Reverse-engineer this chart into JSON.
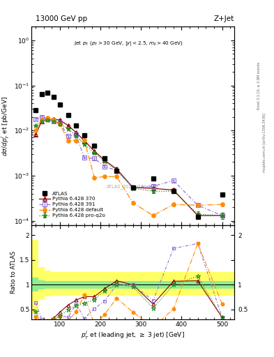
{
  "title_top": "13000 GeV pp",
  "title_right": "Z+Jet",
  "watermark": "ATLAS_2017_I1514251",
  "rivet_text": "Rivet 3.1.10, ≥ 2.8M events",
  "mcplots_text": "mcplots.cern.ch [arXiv:1306.3436]",
  "atlas_x": [
    40,
    55,
    70,
    85,
    100,
    120,
    140,
    160,
    185,
    210,
    240,
    280,
    330,
    380,
    440,
    500
  ],
  "atlas_y": [
    0.028,
    0.065,
    0.068,
    0.055,
    0.038,
    0.022,
    0.013,
    0.0079,
    0.0046,
    0.0024,
    0.0013,
    0.00055,
    0.00085,
    0.00045,
    0.00012,
    0.00038
  ],
  "py370_x": [
    40,
    55,
    70,
    85,
    100,
    120,
    140,
    160,
    185,
    210,
    240,
    280,
    330,
    380,
    440,
    500
  ],
  "py370_y": [
    0.008,
    0.016,
    0.018,
    0.018,
    0.017,
    0.013,
    0.009,
    0.006,
    0.0035,
    0.0022,
    0.0014,
    0.00055,
    0.00052,
    0.00048,
    0.00013,
    0.00013
  ],
  "py370_yerr": [
    0.0004,
    0.0008,
    0.0009,
    0.0009,
    0.0008,
    0.0006,
    0.0004,
    0.0003,
    0.0002,
    0.00015,
    0.0001,
    5e-05,
    5e-05,
    5e-05,
    2e-05,
    2e-05
  ],
  "py391_x": [
    40,
    55,
    70,
    85,
    100,
    120,
    140,
    160,
    185,
    210,
    240,
    280,
    330,
    380,
    440,
    500
  ],
  "py391_y": [
    0.018,
    0.02,
    0.018,
    0.016,
    0.015,
    0.0075,
    0.008,
    0.0025,
    0.0024,
    0.0016,
    0.0013,
    0.00055,
    0.00058,
    0.00078,
    0.00022,
    0.00013
  ],
  "py391_yerr": [
    0.0009,
    0.001,
    0.0009,
    0.0008,
    0.0007,
    0.0004,
    0.0004,
    0.0001,
    0.00015,
    0.0001,
    8e-05,
    4e-05,
    4e-05,
    7e-05,
    2e-05,
    2e-05
  ],
  "pydef_x": [
    40,
    55,
    70,
    85,
    100,
    120,
    140,
    160,
    185,
    210,
    240,
    280,
    330,
    380,
    440,
    500
  ],
  "pydef_y": [
    0.01,
    0.017,
    0.019,
    0.017,
    0.014,
    0.006,
    0.006,
    0.0062,
    0.0009,
    0.00095,
    0.00095,
    0.00025,
    0.00013,
    0.00023,
    0.00022,
    0.00023
  ],
  "pydef_yerr": [
    0.0005,
    0.0008,
    0.001,
    0.0008,
    0.0007,
    0.0003,
    0.0003,
    0.0003,
    5e-05,
    5e-05,
    5e-05,
    2e-05,
    1e-05,
    2e-05,
    2e-05,
    2e-05
  ],
  "pyq2o_x": [
    40,
    55,
    70,
    85,
    100,
    120,
    140,
    160,
    185,
    210,
    240,
    280,
    330,
    380,
    440,
    500
  ],
  "pyq2o_y": [
    0.013,
    0.016,
    0.017,
    0.016,
    0.014,
    0.011,
    0.0075,
    0.005,
    0.0032,
    0.0021,
    0.0013,
    0.00053,
    0.00045,
    0.00045,
    0.00014,
    0.00013
  ],
  "pyq2o_yerr": [
    0.0006,
    0.0008,
    0.0009,
    0.0008,
    0.0007,
    0.0005,
    0.0004,
    0.0002,
    0.00015,
    0.0001,
    8e-05,
    4e-05,
    4e-05,
    4e-05,
    2e-05,
    2e-05
  ],
  "ratio_bin_edges": [
    30,
    47,
    63,
    78,
    92,
    110,
    130,
    150,
    173,
    198,
    225,
    260,
    305,
    355,
    410,
    470,
    530
  ],
  "ratio_green_low": [
    0.86,
    0.91,
    0.92,
    0.92,
    0.92,
    0.92,
    0.92,
    0.92,
    0.92,
    0.92,
    0.92,
    0.92,
    0.92,
    0.92,
    0.92,
    0.92
  ],
  "ratio_green_high": [
    1.14,
    1.09,
    1.08,
    1.08,
    1.08,
    1.08,
    1.08,
    1.08,
    1.08,
    1.08,
    1.08,
    1.08,
    1.08,
    1.08,
    1.08,
    1.08
  ],
  "ratio_yellow_low": [
    0.42,
    0.7,
    0.76,
    0.78,
    0.78,
    0.78,
    0.78,
    0.78,
    0.78,
    0.78,
    0.78,
    0.78,
    0.78,
    0.78,
    0.78,
    0.78
  ],
  "ratio_yellow_high": [
    1.9,
    1.35,
    1.28,
    1.26,
    1.26,
    1.26,
    1.26,
    1.26,
    1.26,
    1.26,
    1.26,
    1.26,
    1.26,
    1.26,
    1.26,
    1.26
  ],
  "ratio_py370_y": [
    0.29,
    0.25,
    0.26,
    0.33,
    0.45,
    0.59,
    0.69,
    0.76,
    0.76,
    0.92,
    1.08,
    1.0,
    0.61,
    1.07,
    1.08,
    0.34
  ],
  "ratio_py391_y": [
    0.64,
    0.31,
    0.26,
    0.29,
    0.39,
    0.34,
    0.62,
    0.32,
    0.52,
    0.67,
    1.0,
    1.0,
    0.68,
    1.73,
    1.83,
    0.34
  ],
  "ratio_pydef_y": [
    0.36,
    0.26,
    0.28,
    0.31,
    0.37,
    0.27,
    0.46,
    0.79,
    0.2,
    0.4,
    0.73,
    0.45,
    0.15,
    0.51,
    1.83,
    0.61
  ],
  "ratio_pyq2o_y": [
    0.46,
    0.25,
    0.25,
    0.29,
    0.37,
    0.5,
    0.58,
    0.63,
    0.7,
    0.88,
    1.0,
    0.96,
    0.53,
    1.0,
    1.17,
    0.34
  ],
  "color_atlas": "#000000",
  "color_py370": "#8B0000",
  "color_py391": "#9370DB",
  "color_pydef": "#FF8C00",
  "color_pyq2o": "#228B22",
  "color_green_band": "#90EE90",
  "color_yellow_band": "#FFFF66",
  "ylim_main": [
    8e-05,
    2.0
  ],
  "ylim_ratio": [
    0.3,
    2.2
  ],
  "xlim": [
    30,
    530
  ]
}
